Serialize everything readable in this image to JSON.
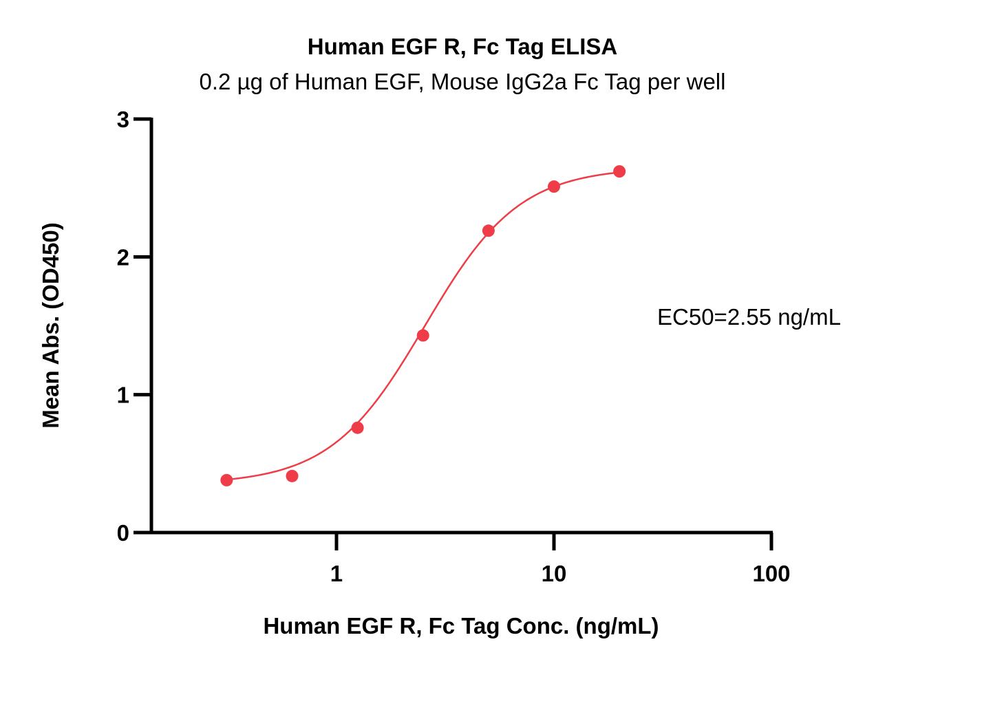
{
  "chart_data": {
    "type": "scatter",
    "title": "Human EGF R, Fc Tag ELISA",
    "subtitle": "0.2 µg of Human EGF, Mouse IgG2a Fc Tag per well",
    "xlabel": "Human EGF R, Fc Tag Conc. (ng/mL)",
    "ylabel": "Mean Abs. (OD450)",
    "x_scale": "log",
    "xlim": [
      0.12,
      100
    ],
    "ylim": [
      0,
      3
    ],
    "x_ticks": [
      1,
      10,
      100
    ],
    "x_tick_labels": [
      "1",
      "10",
      "100"
    ],
    "y_ticks": [
      0,
      1,
      2,
      3
    ],
    "y_tick_labels": [
      "0",
      "1",
      "2",
      "3"
    ],
    "grid": false,
    "series": [
      {
        "color": "#ee3d48",
        "x": [
          0.3125,
          0.625,
          1.25,
          2.5,
          5,
          10,
          20
        ],
        "y": [
          0.38,
          0.41,
          0.76,
          1.43,
          2.19,
          2.51,
          2.62
        ]
      }
    ],
    "fit_curve": {
      "model": "4PL",
      "bottom": 0.35,
      "top": 2.65,
      "ec50": 2.55,
      "hill": 2.0,
      "color": "#ee3d48"
    },
    "annotations": [
      {
        "text": "EC50=2.55 ng/mL"
      }
    ]
  }
}
